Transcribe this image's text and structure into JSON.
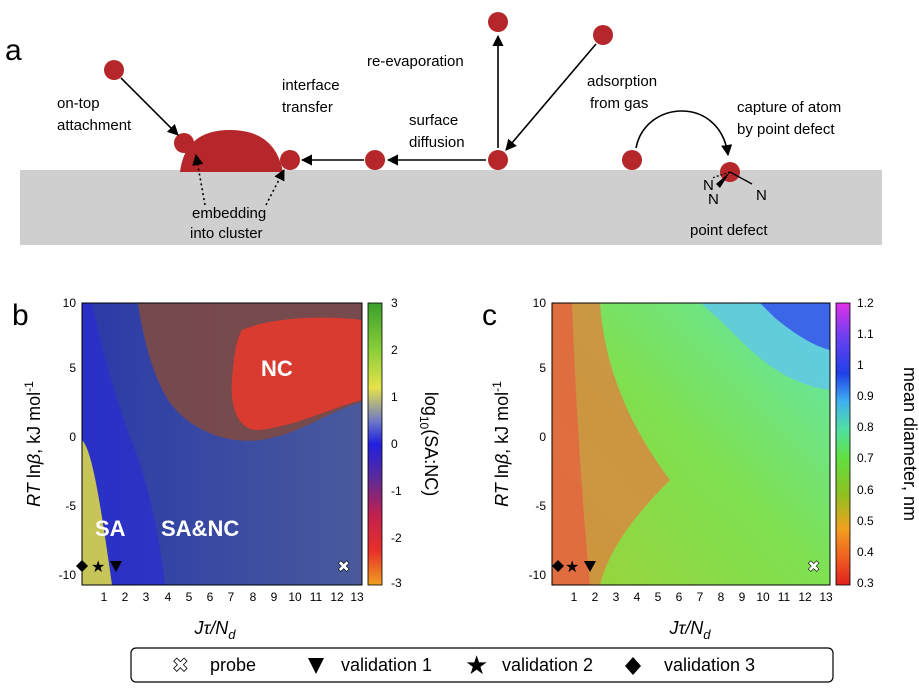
{
  "panel_a": {
    "letter": "a",
    "labels": {
      "on_top": [
        "on-top",
        "attachment"
      ],
      "interface": [
        "interface",
        "transfer"
      ],
      "reevap": "re-evaporation",
      "adsorption": [
        "adsorption",
        "from gas"
      ],
      "surface": [
        "surface",
        "diffusion"
      ],
      "capture": [
        "capture of atom",
        "by point defect"
      ],
      "embedding": [
        "embedding",
        "into cluster"
      ],
      "point_defect": "point defect",
      "n1": "N",
      "n2": "N",
      "n3": "N"
    },
    "colors": {
      "atom": "#b5272a",
      "substrate": "#cfcfcf"
    }
  },
  "panel_b": {
    "letter": "b",
    "ylabel_prefix": "RT",
    "ylabel_mid": " ln",
    "ylabel_beta": "β",
    "ylabel_units": ", kJ mol",
    "ylabel_sup": "-1",
    "xlabel": "Jτ/N",
    "xlabel_sub": "d",
    "cbar_label": "log",
    "cbar_label_sub": "10",
    "cbar_label_rest": "(SA:NC)",
    "region_labels": [
      "NC",
      "SA",
      "SA&NC"
    ],
    "x_ticks": [
      "1",
      "2",
      "3",
      "4",
      "5",
      "6",
      "7",
      "8",
      "9",
      "10",
      "11",
      "12",
      "13"
    ],
    "y_ticks": [
      "10",
      "5",
      "0",
      "-5",
      "-10"
    ],
    "cbar_ticks": [
      "3",
      "2",
      "1",
      "0",
      "-1",
      "-2",
      "-3"
    ]
  },
  "panel_c": {
    "letter": "c",
    "ylabel_prefix": "RT",
    "ylabel_mid": " ln",
    "ylabel_beta": "β",
    "ylabel_units": ", kJ mol",
    "ylabel_sup": "-1",
    "xlabel": "Jτ/N",
    "xlabel_sub": "d",
    "cbar_label": "mean diameter, nm",
    "x_ticks": [
      "1",
      "2",
      "3",
      "4",
      "5",
      "6",
      "7",
      "8",
      "9",
      "10",
      "11",
      "12",
      "13"
    ],
    "y_ticks": [
      "10",
      "5",
      "0",
      "-5",
      "-10"
    ],
    "cbar_ticks": [
      "1.2",
      "1.1",
      "1",
      "0.9",
      "0.8",
      "0.7",
      "0.6",
      "0.5",
      "0.4",
      "0.3"
    ]
  },
  "legend": {
    "items": [
      {
        "symbol": "probe-icon",
        "label": "probe"
      },
      {
        "symbol": "triangle-down-icon",
        "label": "validation 1"
      },
      {
        "symbol": "star-icon",
        "label": "validation 2"
      },
      {
        "symbol": "diamond-icon",
        "label": "validation 3"
      }
    ]
  }
}
